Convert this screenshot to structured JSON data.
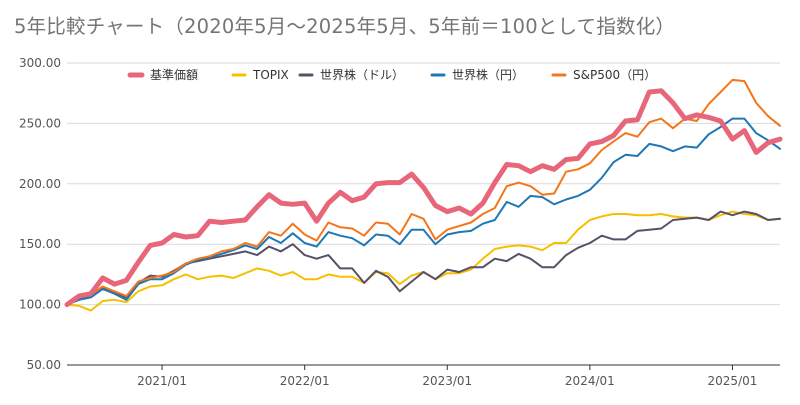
{
  "chart_data": {
    "type": "line",
    "title": "5年比較チャート（2020年5月～2025年5月、5年前＝100として指数化）",
    "xlabel": "",
    "ylabel": "",
    "ylim": [
      50,
      300
    ],
    "yticks": [
      "300.00",
      "250.00",
      "200.00",
      "150.00",
      "100.00",
      "50.00"
    ],
    "ytick_values": [
      300,
      250,
      200,
      150,
      100,
      50
    ],
    "xticks": [
      {
        "label": "2021/01",
        "index": 8
      },
      {
        "label": "2022/01",
        "index": 20
      },
      {
        "label": "2023/01",
        "index": 32
      },
      {
        "label": "2024/01",
        "index": 44
      },
      {
        "label": "2025/01",
        "index": 56
      }
    ],
    "x_start": "2020/05",
    "x_end": "2025/05",
    "grid": "horizontal",
    "legend_position": "top",
    "series": [
      {
        "name": "基準価額",
        "color": "#e8667a",
        "width": 5,
        "values": [
          100,
          107,
          109,
          122,
          117,
          120,
          135,
          149,
          151,
          158,
          156,
          157,
          169,
          168,
          169,
          170,
          181,
          191,
          184,
          183,
          184,
          169,
          184,
          193,
          186,
          189,
          200,
          201,
          201,
          208,
          197,
          182,
          177,
          180,
          175,
          184,
          201,
          216,
          215,
          210,
          215,
          212,
          220,
          221,
          233,
          235,
          240,
          252,
          253,
          276,
          277,
          267,
          254,
          257,
          255,
          252,
          237,
          244,
          226,
          234,
          237
        ]
      },
      {
        "name": "TOPIX",
        "color": "#f5c000",
        "width": 2,
        "values": [
          100,
          99,
          95,
          103,
          104,
          102,
          111,
          115,
          116,
          121,
          125,
          121,
          123,
          124,
          122,
          126,
          130,
          128,
          124,
          127,
          121,
          121,
          125,
          123,
          123,
          118,
          127,
          126,
          117,
          124,
          127,
          121,
          126,
          126,
          129,
          138,
          146,
          148,
          149,
          148,
          145,
          151,
          151,
          162,
          170,
          173,
          175,
          175,
          174,
          174,
          175,
          173,
          172,
          172,
          170,
          174,
          177,
          175,
          174,
          170,
          171
        ]
      },
      {
        "name": "世界株（ドル）",
        "color": "#594f67",
        "width": 2,
        "values": [
          100,
          104,
          108,
          114,
          110,
          106,
          118,
          124,
          123,
          128,
          134,
          136,
          138,
          140,
          142,
          144,
          141,
          148,
          144,
          150,
          141,
          138,
          141,
          130,
          130,
          118,
          128,
          123,
          111,
          119,
          127,
          121,
          129,
          127,
          131,
          131,
          138,
          136,
          142,
          138,
          131,
          131,
          141,
          147,
          151,
          157,
          154,
          154,
          161,
          162,
          163,
          170,
          171,
          172,
          170,
          177,
          174,
          177,
          175,
          170,
          171
        ]
      },
      {
        "name": "世界株（円）",
        "color": "#1f78b4",
        "width": 2,
        "values": [
          100,
          104,
          106,
          113,
          109,
          104,
          117,
          121,
          121,
          126,
          133,
          137,
          139,
          142,
          145,
          149,
          146,
          156,
          151,
          159,
          151,
          148,
          160,
          157,
          155,
          149,
          158,
          157,
          150,
          162,
          162,
          150,
          158,
          160,
          161,
          167,
          170,
          185,
          181,
          190,
          189,
          183,
          187,
          190,
          195,
          205,
          218,
          224,
          223,
          233,
          231,
          227,
          231,
          230,
          241,
          247,
          254,
          254,
          242,
          236,
          229
        ]
      },
      {
        "name": "S&P500（円）",
        "color": "#f5761a",
        "width": 2,
        "values": [
          100,
          106,
          108,
          115,
          111,
          107,
          119,
          122,
          124,
          127,
          134,
          138,
          140,
          144,
          146,
          151,
          148,
          160,
          157,
          167,
          158,
          153,
          168,
          164,
          163,
          157,
          168,
          167,
          158,
          175,
          171,
          154,
          162,
          165,
          168,
          175,
          180,
          198,
          201,
          198,
          191,
          192,
          210,
          212,
          217,
          228,
          235,
          242,
          239,
          251,
          254,
          246,
          254,
          252,
          266,
          276,
          286,
          285,
          267,
          256,
          248
        ]
      }
    ]
  }
}
